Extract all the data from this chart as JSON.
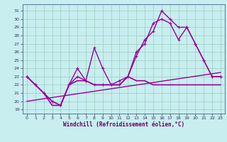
{
  "xlabel": "Windchill (Refroidissement éolien,°C)",
  "background_color": "#c8eef0",
  "grid_color": "#99ccbb",
  "line_color": "#990099",
  "xlim": [
    -0.5,
    23.5
  ],
  "ylim": [
    18.5,
    31.8
  ],
  "xticks": [
    0,
    1,
    2,
    3,
    4,
    5,
    6,
    7,
    8,
    9,
    10,
    11,
    12,
    13,
    14,
    15,
    16,
    17,
    18,
    19,
    20,
    21,
    22,
    23
  ],
  "yticks": [
    19,
    20,
    21,
    22,
    23,
    24,
    25,
    26,
    27,
    28,
    29,
    30,
    31
  ],
  "s0x": [
    0,
    1,
    2,
    3,
    4,
    5,
    6,
    7,
    8,
    9,
    10,
    11,
    12,
    13,
    14,
    15,
    16,
    17,
    18,
    19,
    20,
    21,
    22,
    23
  ],
  "s0y": [
    23,
    22,
    21,
    19.5,
    19.5,
    22,
    22.5,
    22.5,
    22,
    22,
    22,
    22,
    23,
    22.5,
    22.5,
    22,
    22,
    22,
    22,
    22,
    22,
    22,
    22,
    22
  ],
  "s1x": [
    0,
    23
  ],
  "s1y": [
    20.0,
    23.5
  ],
  "s2x": [
    0,
    1,
    2,
    3,
    4,
    5,
    6,
    7,
    8,
    9,
    10,
    11,
    12,
    13,
    14,
    15,
    16,
    17,
    18,
    19,
    20,
    21,
    22,
    23
  ],
  "s2y": [
    23,
    22,
    21,
    20,
    19.5,
    22,
    23,
    22.5,
    26.5,
    24,
    22,
    22,
    23,
    25.5,
    27.5,
    28.5,
    31,
    30,
    29,
    29,
    27,
    25,
    23,
    23
  ],
  "s3x": [
    0,
    1,
    2,
    3,
    4,
    5,
    6,
    7,
    8,
    9,
    10,
    11,
    12,
    13,
    14,
    15,
    16,
    17,
    18,
    19,
    20,
    21,
    22,
    23
  ],
  "s3y": [
    23,
    22,
    21,
    20,
    19.5,
    22,
    24,
    22.5,
    22,
    22,
    22,
    22.5,
    23,
    26,
    27,
    29.5,
    30,
    29.5,
    27.5,
    29,
    27,
    25,
    23,
    23
  ]
}
